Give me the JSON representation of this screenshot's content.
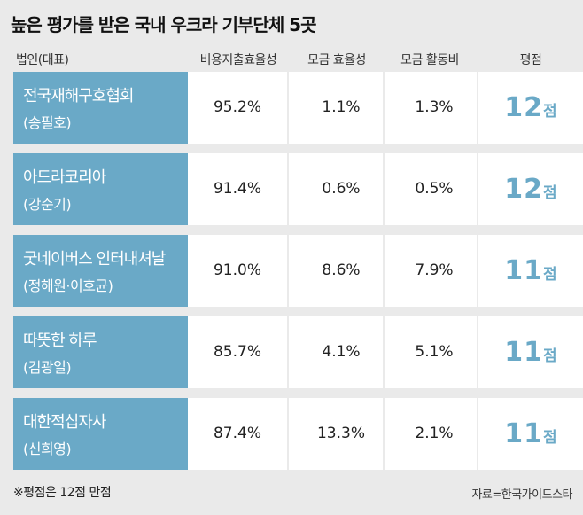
{
  "title": "높은 평가를 받은 국내 우크라 기부단체 5곳",
  "headers": {
    "org": "법인(대표)",
    "expense_ratio": "비용지출효율성",
    "fundraising_eff": "모금 효율성",
    "fundraising_cost": "모금 활동비",
    "score": "평점"
  },
  "rows": [
    {
      "name": "전국재해구호협회",
      "rep": "(송필호)",
      "expense_ratio": "95.2%",
      "fundraising_eff": "1.1%",
      "fundraising_cost": "1.3%",
      "score": "12",
      "score_unit": "점"
    },
    {
      "name": "아드라코리아",
      "rep": "(강순기)",
      "expense_ratio": "91.4%",
      "fundraising_eff": "0.6%",
      "fundraising_cost": "0.5%",
      "score": "12",
      "score_unit": "점"
    },
    {
      "name": "굿네이버스 인터내셔날",
      "rep": "(정해원·이호균)",
      "expense_ratio": "91.0%",
      "fundraising_eff": "8.6%",
      "fundraising_cost": "7.9%",
      "score": "11",
      "score_unit": "점"
    },
    {
      "name": "따뜻한 하루",
      "rep": "(김광일)",
      "expense_ratio": "85.7%",
      "fundraising_eff": "4.1%",
      "fundraising_cost": "5.1%",
      "score": "11",
      "score_unit": "점"
    },
    {
      "name": "대한적십자사",
      "rep": "(신희영)",
      "expense_ratio": "87.4%",
      "fundraising_eff": "13.3%",
      "fundraising_cost": "2.1%",
      "score": "11",
      "score_unit": "점"
    }
  ],
  "footnote": "※평점은 12점 만점",
  "source": "자료=한국가이드스타",
  "colors": {
    "accent": "#6aa9c7",
    "background": "#eaeaea",
    "cell": "#ffffff"
  }
}
